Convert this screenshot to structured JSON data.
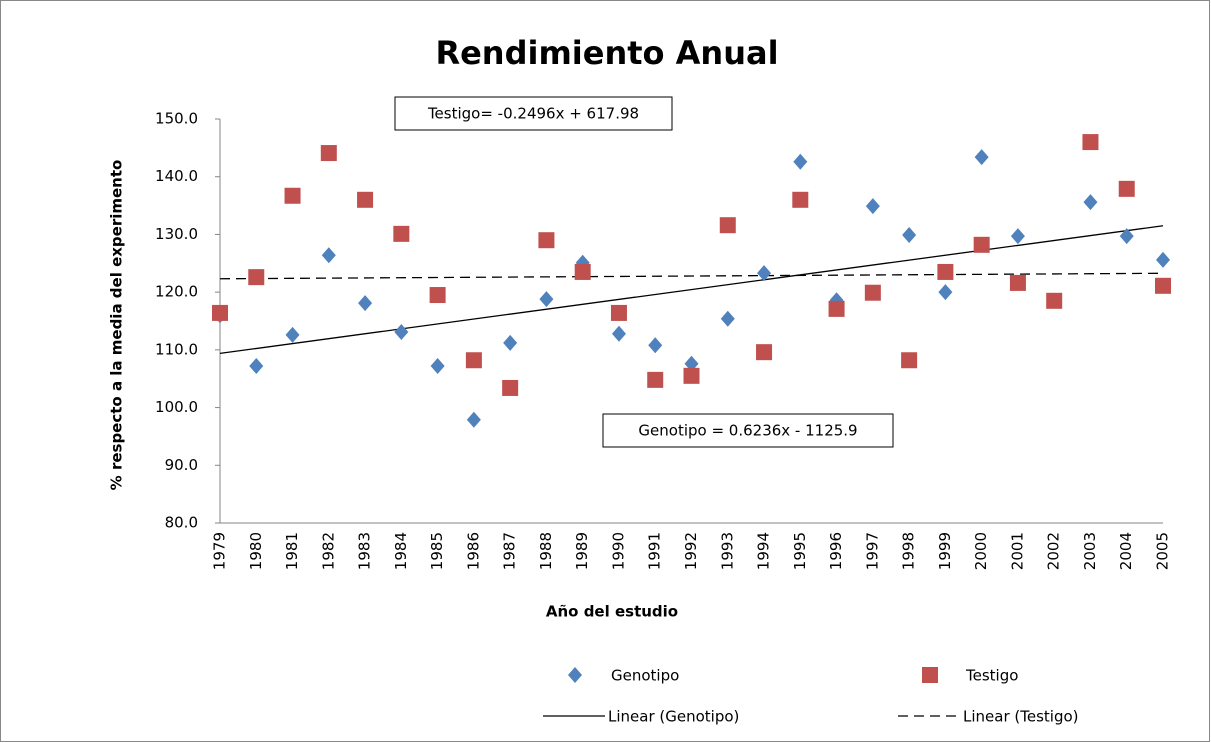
{
  "chart_data": {
    "type": "scatter",
    "title": "Rendimiento Anual",
    "x_label": "Año del estudio",
    "y_label": "% respecto a la media del experimento",
    "x": [
      1979,
      1980,
      1981,
      1982,
      1983,
      1984,
      1985,
      1986,
      1987,
      1988,
      1989,
      1990,
      1991,
      1992,
      1993,
      1994,
      1995,
      1996,
      1997,
      1998,
      1999,
      2000,
      2001,
      2002,
      2003,
      2004,
      2005
    ],
    "xlim": [
      1979,
      2005
    ],
    "ylim": [
      80,
      150
    ],
    "yticks": [
      {
        "value": 80,
        "label": "80.0"
      },
      {
        "value": 90,
        "label": "90.0"
      },
      {
        "value": 100,
        "label": "100.0"
      },
      {
        "value": 110,
        "label": "110.0"
      },
      {
        "value": 120,
        "label": "120.0"
      },
      {
        "value": 130,
        "label": "130.0"
      },
      {
        "value": 140,
        "label": "140.0"
      },
      {
        "value": 150,
        "label": "150.0"
      }
    ],
    "series": [
      {
        "name": "Genotipo",
        "color": "#4f81bd",
        "marker": "diamond",
        "trendline_name": "Linear (Genotipo)",
        "trendline_dash": "none",
        "equation": "Genotipo = 0.6236x - 1125.9",
        "values": [
          116.0,
          107.2,
          112.6,
          126.4,
          118.1,
          113.1,
          107.2,
          97.9,
          111.2,
          118.8,
          125.1,
          112.8,
          110.8,
          107.6,
          115.4,
          123.3,
          142.6,
          118.6,
          134.9,
          129.9,
          120.0,
          143.4,
          129.7,
          118.5,
          135.6,
          129.7,
          125.6
        ]
      },
      {
        "name": "Testigo",
        "color": "#c0504d",
        "marker": "square",
        "trendline_name": "Linear (Testigo)",
        "trendline_dash": "10 6",
        "equation": "Testigo= -0.2496x + 617.98",
        "values": [
          116.4,
          122.6,
          136.7,
          144.1,
          136.0,
          130.1,
          119.5,
          108.2,
          103.4,
          129.0,
          123.5,
          116.4,
          104.8,
          105.5,
          131.6,
          109.6,
          136.0,
          117.1,
          119.9,
          108.2,
          123.5,
          128.2,
          121.6,
          118.5,
          146.0,
          137.9,
          121.1
        ]
      }
    ]
  }
}
